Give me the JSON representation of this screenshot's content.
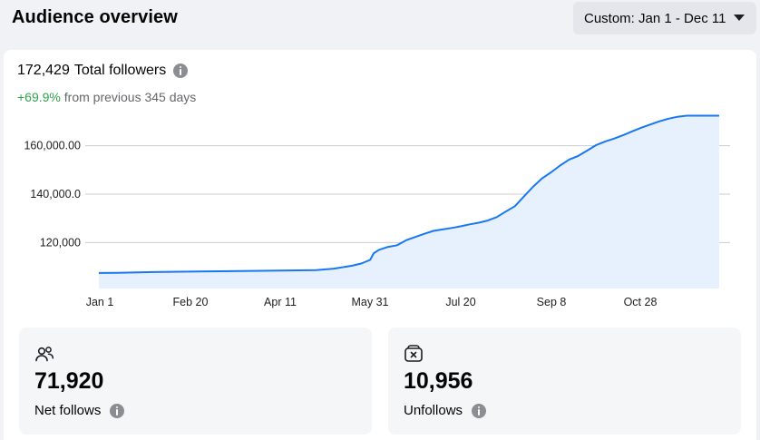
{
  "header": {
    "title": "Audience overview",
    "date_range_label": "Custom: Jan 1 - Dec 11"
  },
  "summary": {
    "total_value": "172,429",
    "total_label": "Total followers",
    "change_pct": "+69.9%",
    "change_text": "from previous 345 days"
  },
  "chart_data": {
    "type": "area",
    "x_ticks": [
      "Jan 1",
      "Feb 20",
      "Apr 11",
      "May 31",
      "Jul 20",
      "Sep 8",
      "Oct 28"
    ],
    "y_ticks": [
      "120,000",
      "140,000.0",
      "160,000.00"
    ],
    "y_tick_values": [
      120000,
      140000,
      160000
    ],
    "ylim": [
      101000,
      179000
    ],
    "series": [
      {
        "x_days": [
          0,
          10,
          30,
          60,
          90,
          120,
          130,
          140,
          145,
          150,
          152,
          155,
          160,
          165,
          170,
          175,
          180,
          185,
          190,
          195,
          200,
          205,
          210,
          215,
          220,
          225,
          230,
          235,
          240,
          245,
          250,
          255,
          260,
          265,
          270,
          275,
          280,
          285,
          290,
          295,
          300,
          305,
          310,
          315,
          320,
          325,
          330,
          335,
          340,
          343
        ],
        "values": [
          107400,
          107500,
          107800,
          108100,
          108300,
          108600,
          109200,
          110400,
          111300,
          112800,
          115600,
          117000,
          118200,
          118900,
          121000,
          122300,
          123600,
          124800,
          125400,
          126000,
          126700,
          127500,
          128200,
          129100,
          130500,
          132800,
          135000,
          139000,
          143000,
          146500,
          149000,
          151800,
          154300,
          155800,
          158000,
          160300,
          161800,
          163000,
          164400,
          166000,
          167500,
          168800,
          170100,
          171200,
          172000,
          172429,
          172429,
          172429,
          172429,
          172429
        ]
      }
    ],
    "colors": {
      "line": "#1877f2",
      "fill": "#e7f0fd",
      "grid": "#c9ccd1"
    }
  },
  "stats": [
    {
      "icon": "people-icon",
      "value": "71,920",
      "label": "Net follows"
    },
    {
      "icon": "unfollow-icon",
      "value": "10,956",
      "label": "Unfollows"
    }
  ]
}
